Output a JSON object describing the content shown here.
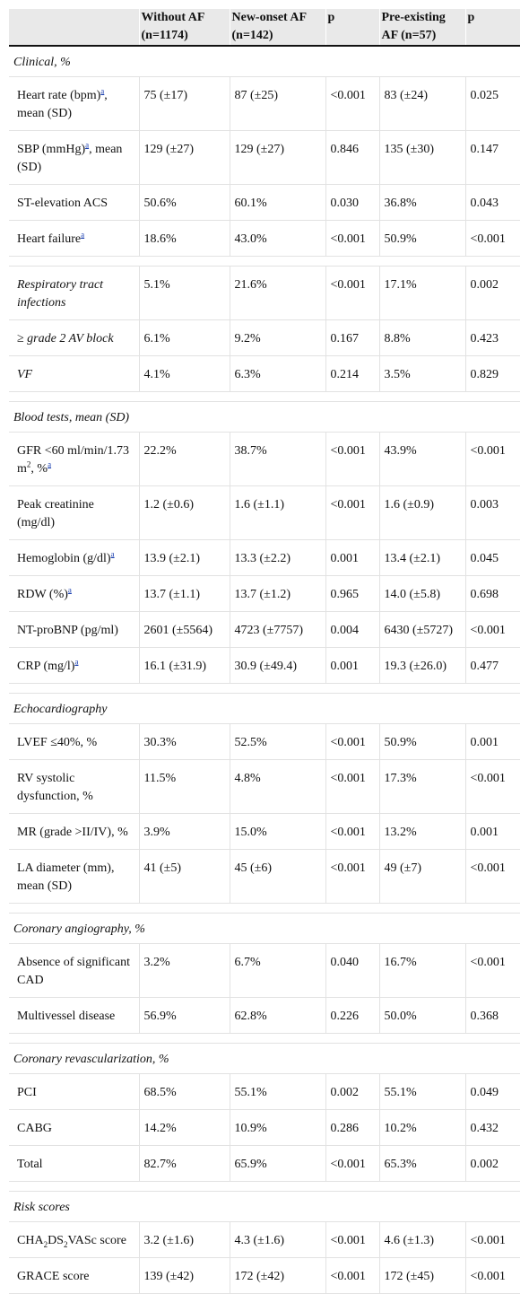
{
  "header": {
    "c1": "",
    "c2": "Without AF (n=1174)",
    "c3": "New-onset AF (n=142)",
    "c4": "p",
    "c5": "Pre-existing AF (n=57)",
    "c6": "p"
  },
  "footnote_mark": "a",
  "sections": [
    {
      "title": "Clinical, %",
      "rows": [
        {
          "label": "Heart rate (bpm)",
          "fn": true,
          "after": ", mean (SD)",
          "v": [
            "75 (±17)",
            "87 (±25)",
            "<0.001",
            "83 (±24)",
            "0.025"
          ]
        },
        {
          "label": "SBP (mmHg)",
          "fn": true,
          "after": ", mean (SD)",
          "v": [
            "129 (±27)",
            "129 (±27)",
            "0.846",
            "135 (±30)",
            "0.147"
          ]
        },
        {
          "label": "ST-elevation ACS",
          "v": [
            "50.6%",
            "60.1%",
            "0.030",
            "36.8%",
            "0.043"
          ]
        },
        {
          "label": "Heart failure",
          "fn": true,
          "v": [
            "18.6%",
            "43.0%",
            "<0.001",
            "50.9%",
            "<0.001"
          ]
        }
      ]
    },
    {
      "title": null,
      "rows": [
        {
          "label": "Respiratory tract infections",
          "italic": true,
          "v": [
            "5.1%",
            "21.6%",
            "<0.001",
            "17.1%",
            "0.002"
          ]
        },
        {
          "label": "≥ grade 2 AV block",
          "italic": true,
          "v": [
            "6.1%",
            "9.2%",
            "0.167",
            "8.8%",
            "0.423"
          ]
        },
        {
          "label": "VF",
          "italic": true,
          "v": [
            "4.1%",
            "6.3%",
            "0.214",
            "3.5%",
            "0.829"
          ]
        }
      ]
    },
    {
      "title": "Blood tests, mean (SD)",
      "rows": [
        {
          "label": "GFR <60 ml/min/1.73 m",
          "sup": "2",
          "after": ", %",
          "fn": true,
          "fn_last": true,
          "v": [
            "22.2%",
            "38.7%",
            "<0.001",
            "43.9%",
            "<0.001"
          ]
        },
        {
          "label": "Peak creatinine (mg/dl)",
          "v": [
            "1.2 (±0.6)",
            "1.6 (±1.1)",
            "<0.001",
            "1.6 (±0.9)",
            "0.003"
          ]
        },
        {
          "label": "Hemoglobin (g/dl)",
          "fn": true,
          "v": [
            "13.9 (±2.1)",
            "13.3 (±2.2)",
            "0.001",
            "13.4 (±2.1)",
            "0.045"
          ]
        },
        {
          "label": "RDW (%)",
          "fn": true,
          "v": [
            "13.7 (±1.1)",
            "13.7 (±1.2)",
            "0.965",
            "14.0 (±5.8)",
            "0.698"
          ]
        },
        {
          "label": "NT-proBNP (pg/ml)",
          "v": [
            "2601 (±5564)",
            "4723 (±7757)",
            "0.004",
            "6430 (±5727)",
            "<0.001"
          ]
        },
        {
          "label": "CRP (mg/l)",
          "fn": true,
          "v": [
            "16.1 (±31.9)",
            "30.9 (±49.4)",
            "0.001",
            "19.3 (±26.0)",
            "0.477"
          ]
        }
      ]
    },
    {
      "title": "Echocardiography",
      "rows": [
        {
          "label": "LVEF ≤40%, %",
          "v": [
            "30.3%",
            "52.5%",
            "<0.001",
            "50.9%",
            "0.001"
          ]
        },
        {
          "label": "RV systolic dysfunction, %",
          "v": [
            "11.5%",
            "4.8%",
            "<0.001",
            "17.3%",
            "<0.001"
          ]
        },
        {
          "label": "MR (grade >II/IV), %",
          "v": [
            "3.9%",
            "15.0%",
            "<0.001",
            "13.2%",
            "0.001"
          ]
        },
        {
          "label": "LA diameter (mm), mean (SD)",
          "v": [
            "41 (±5)",
            "45 (±6)",
            "<0.001",
            "49 (±7)",
            "<0.001"
          ]
        }
      ]
    },
    {
      "title": "Coronary angiography, %",
      "rows": [
        {
          "label": "Absence of significant CAD",
          "v": [
            "3.2%",
            "6.7%",
            "0.040",
            "16.7%",
            "<0.001"
          ]
        },
        {
          "label": "Multivessel disease",
          "v": [
            "56.9%",
            "62.8%",
            "0.226",
            "50.0%",
            "0.368"
          ]
        }
      ]
    },
    {
      "title": "Coronary revascularization, %",
      "rows": [
        {
          "label": "PCI",
          "v": [
            "68.5%",
            "55.1%",
            "0.002",
            "55.1%",
            "0.049"
          ]
        },
        {
          "label": "CABG",
          "v": [
            "14.2%",
            "10.9%",
            "0.286",
            "10.2%",
            "0.432"
          ]
        },
        {
          "label": "Total",
          "v": [
            "82.7%",
            "65.9%",
            "<0.001",
            "65.3%",
            "0.002"
          ]
        }
      ]
    },
    {
      "title": "Risk scores",
      "rows": [
        {
          "label": "CHA",
          "subs": [
            "2",
            "DS",
            "2",
            "VASc score"
          ],
          "v": [
            "3.2 (±1.6)",
            "4.3 (±1.6)",
            "<0.001",
            "4.6 (±1.3)",
            "<0.001"
          ]
        },
        {
          "label": "GRACE score",
          "v": [
            "139 (±42)",
            "172 (±42)",
            "<0.001",
            "172 (±45)",
            "<0.001"
          ]
        }
      ]
    }
  ]
}
